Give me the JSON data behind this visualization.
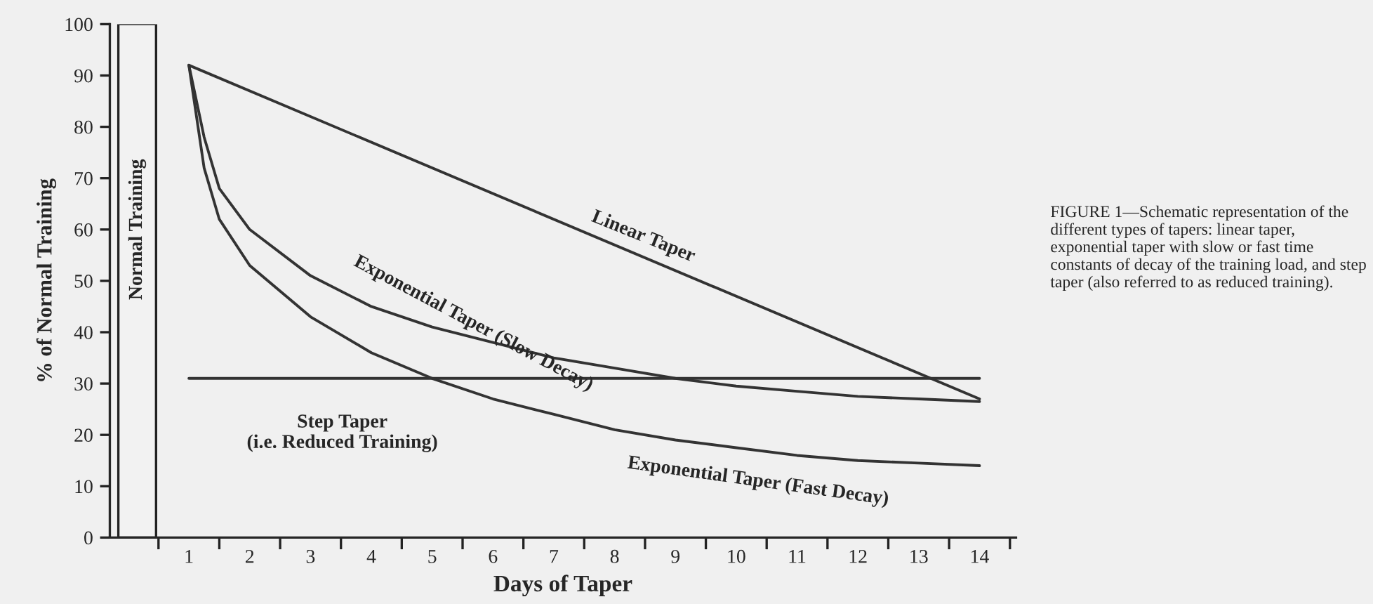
{
  "chart_data": {
    "type": "line",
    "xlabel": "Days of Taper",
    "ylabel": "% of Normal Training",
    "xlim": [
      -0.3,
      14.6
    ],
    "ylim": [
      0,
      100
    ],
    "xticks": [
      {
        "value": 0.5,
        "label": null
      },
      {
        "value": 1,
        "label": "1"
      },
      {
        "value": 1.5,
        "label": null
      },
      {
        "value": 2,
        "label": "2"
      },
      {
        "value": 2.5,
        "label": null
      },
      {
        "value": 3,
        "label": "3"
      },
      {
        "value": 3.5,
        "label": null
      },
      {
        "value": 4,
        "label": "4"
      },
      {
        "value": 4.5,
        "label": null
      },
      {
        "value": 5,
        "label": "5"
      },
      {
        "value": 5.5,
        "label": null
      },
      {
        "value": 6,
        "label": "6"
      },
      {
        "value": 6.5,
        "label": null
      },
      {
        "value": 7,
        "label": "7"
      },
      {
        "value": 7.5,
        "label": null
      },
      {
        "value": 8,
        "label": "8"
      },
      {
        "value": 8.5,
        "label": null
      },
      {
        "value": 9,
        "label": "9"
      },
      {
        "value": 9.5,
        "label": null
      },
      {
        "value": 10,
        "label": "10"
      },
      {
        "value": 10.5,
        "label": null
      },
      {
        "value": 11,
        "label": "11"
      },
      {
        "value": 11.5,
        "label": null
      },
      {
        "value": 12,
        "label": "12"
      },
      {
        "value": 12.5,
        "label": null
      },
      {
        "value": 13,
        "label": "13"
      },
      {
        "value": 13.5,
        "label": null
      },
      {
        "value": 14,
        "label": "14"
      },
      {
        "value": 14.5,
        "label": null
      }
    ],
    "yticks": [
      0,
      10,
      20,
      30,
      40,
      50,
      60,
      70,
      80,
      90,
      100
    ],
    "grid": false,
    "marker": "none",
    "line_style": "solid",
    "series": [
      {
        "type": "bar",
        "name": "Normal Training",
        "color": "#f2f2f2",
        "x": [
          0.15
        ],
        "values": [
          100
        ]
      },
      {
        "name": "Linear Taper",
        "color": "#333333",
        "x": [
          1,
          14
        ],
        "values": [
          92,
          27
        ]
      },
      {
        "name": "Exponential Taper (Slow Decay)",
        "color": "#333333",
        "x": [
          1,
          1.25,
          1.5,
          2,
          3,
          4,
          5,
          6,
          7,
          8,
          9,
          10,
          11,
          12,
          13,
          14
        ],
        "values": [
          92,
          78,
          68,
          60,
          51,
          45,
          41,
          38,
          35,
          33,
          31,
          29.5,
          28.5,
          27.5,
          27,
          26.5
        ]
      },
      {
        "name": "Step Taper\n(i.e. Reduced Training)",
        "color": "#333333",
        "x": [
          1,
          14
        ],
        "values": [
          31,
          31
        ]
      },
      {
        "name": "Exponential Taper (Fast Decay)",
        "color": "#333333",
        "x": [
          1,
          1.25,
          1.5,
          2,
          3,
          4,
          5,
          6,
          7,
          8,
          9,
          10,
          11,
          12,
          13,
          14
        ],
        "values": [
          92,
          72,
          62,
          53,
          43,
          36,
          31,
          27,
          24,
          21,
          19,
          17.5,
          16,
          15,
          14.5,
          14
        ]
      }
    ],
    "annotations": [
      "FIGURE 1—Schematic representation of the different types of tapers: linear taper, exponential taper with slow or fast time constants of decay of the training load, and step taper (also referred to as reduced training)."
    ]
  }
}
